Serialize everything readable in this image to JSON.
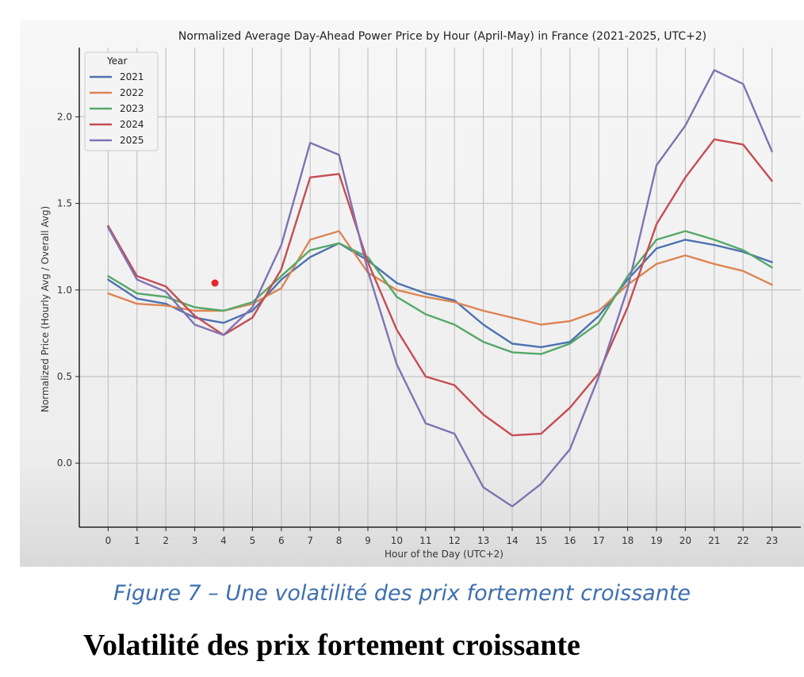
{
  "chart_data": {
    "type": "line",
    "title": "Normalized Average Day-Ahead Power Price by Hour (April-May) in France (2021-2025, UTC+2)",
    "xlabel": "Hour of the Day (UTC+2)",
    "ylabel": "Normalized Price (Hourly Avg / Overall Avg)",
    "x": [
      0,
      1,
      2,
      3,
      4,
      5,
      6,
      7,
      8,
      9,
      10,
      11,
      12,
      13,
      14,
      15,
      16,
      17,
      18,
      19,
      20,
      21,
      22,
      23
    ],
    "xlim": [
      -1,
      24
    ],
    "ylim": [
      -0.37,
      2.4
    ],
    "yticks": [
      0.0,
      0.5,
      1.0,
      1.5,
      2.0
    ],
    "ytick_labels": [
      "0.0",
      "0.5",
      "1.0",
      "1.5",
      "2.0"
    ],
    "grid": true,
    "legend": {
      "title": "Year",
      "placement": "top-left"
    },
    "series": [
      {
        "name": "2021",
        "color": "#4c72b0",
        "values": [
          1.06,
          0.95,
          0.92,
          0.84,
          0.81,
          0.88,
          1.06,
          1.19,
          1.27,
          1.17,
          1.04,
          0.98,
          0.94,
          0.8,
          0.69,
          0.67,
          0.7,
          0.85,
          1.06,
          1.24,
          1.29,
          1.26,
          1.22,
          1.16
        ]
      },
      {
        "name": "2022",
        "color": "#dd8452",
        "values": [
          0.98,
          0.92,
          0.91,
          0.88,
          0.88,
          0.92,
          1.01,
          1.29,
          1.34,
          1.1,
          1.0,
          0.96,
          0.93,
          0.88,
          0.84,
          0.8,
          0.82,
          0.88,
          1.03,
          1.15,
          1.2,
          1.15,
          1.11,
          1.03
        ]
      },
      {
        "name": "2023",
        "color": "#55a868",
        "values": [
          1.08,
          0.98,
          0.96,
          0.9,
          0.88,
          0.93,
          1.08,
          1.23,
          1.27,
          1.19,
          0.96,
          0.86,
          0.8,
          0.7,
          0.64,
          0.63,
          0.69,
          0.81,
          1.08,
          1.29,
          1.34,
          1.29,
          1.23,
          1.13
        ]
      },
      {
        "name": "2024",
        "color": "#c44e52",
        "values": [
          1.37,
          1.08,
          1.02,
          0.85,
          0.74,
          0.84,
          1.12,
          1.65,
          1.67,
          1.16,
          0.77,
          0.5,
          0.45,
          0.28,
          0.16,
          0.17,
          0.32,
          0.52,
          0.9,
          1.38,
          1.65,
          1.87,
          1.84,
          1.63
        ]
      },
      {
        "name": "2025",
        "color": "#8172b3",
        "values": [
          1.36,
          1.06,
          0.99,
          0.8,
          0.74,
          0.9,
          1.26,
          1.85,
          1.78,
          1.11,
          0.57,
          0.23,
          0.17,
          -0.14,
          -0.25,
          -0.12,
          0.08,
          0.5,
          1.01,
          1.72,
          1.95,
          2.27,
          2.19,
          1.8
        ]
      }
    ],
    "marker_point": {
      "x": 3.7,
      "y": 1.04,
      "color": "#e8242a"
    }
  },
  "caption": "Figure 7 – Une volatilité des prix fortement croissante",
  "heading": "Volatilité des prix fortement croissante"
}
